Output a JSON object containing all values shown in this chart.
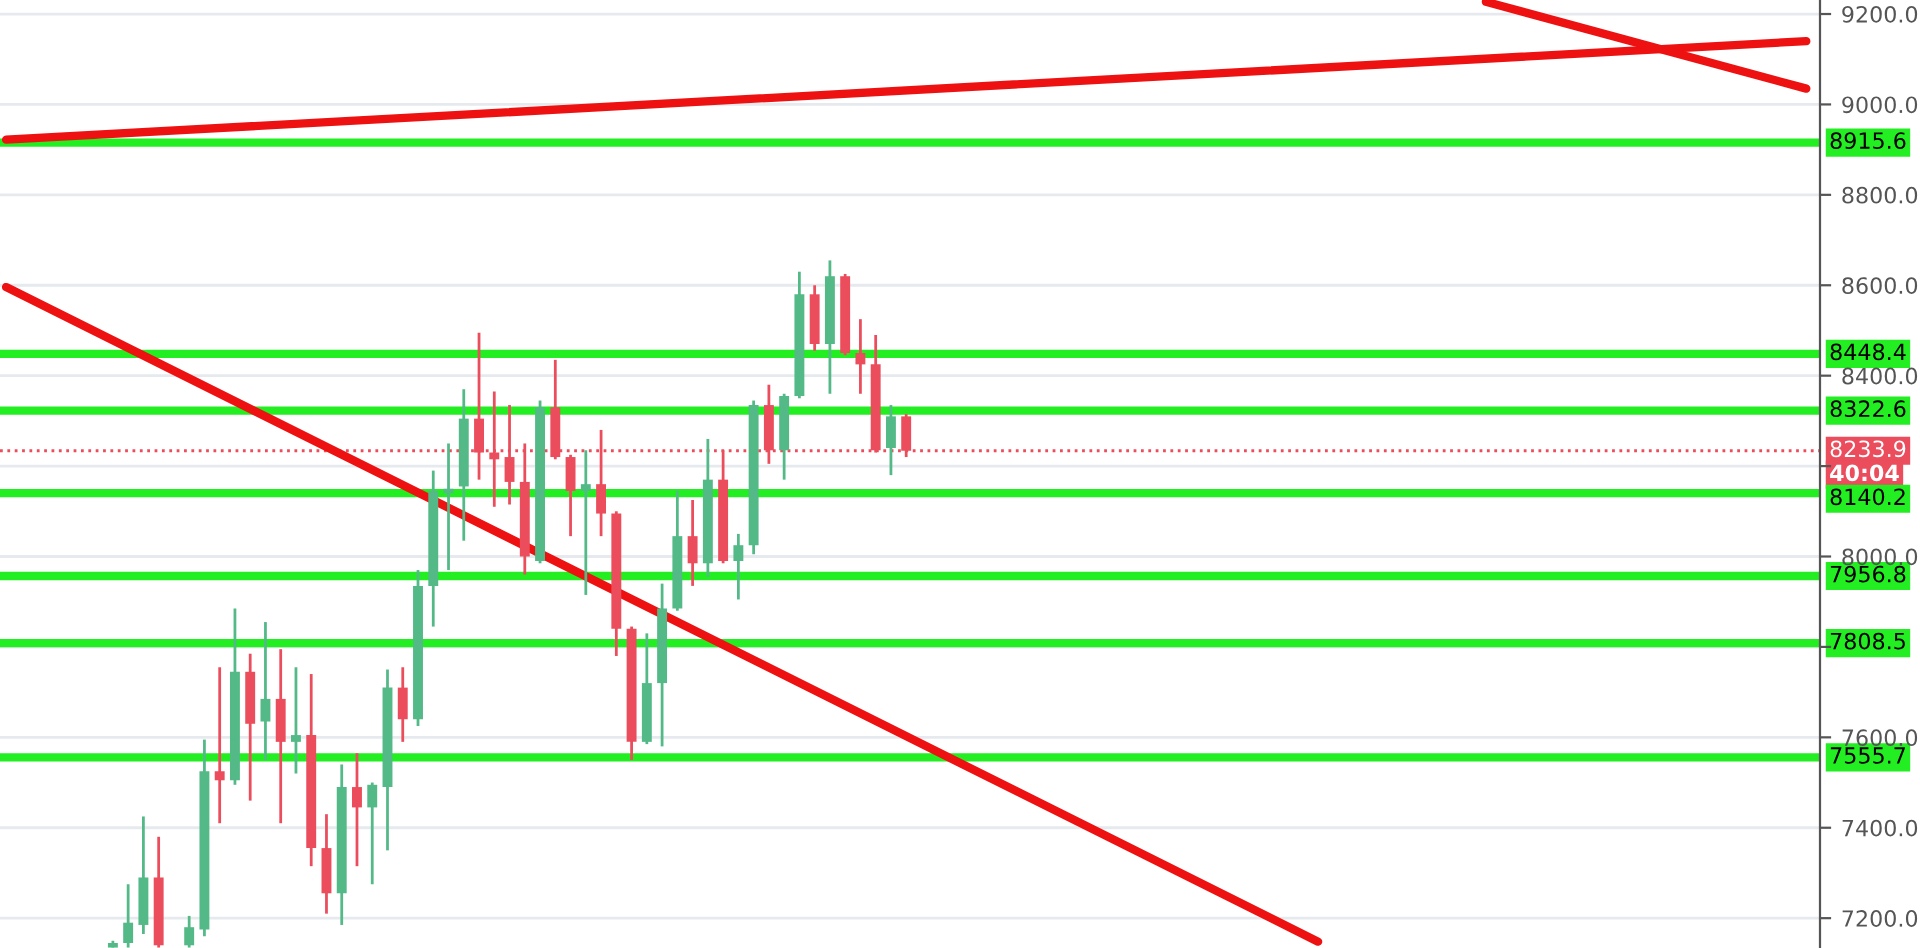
{
  "chart_data": {
    "type": "candlestick",
    "categories": [
      null,
      null,
      null,
      null,
      null,
      null,
      null,
      null,
      null,
      null,
      null,
      null,
      null,
      null,
      null,
      null,
      null,
      null,
      null,
      null,
      null,
      null,
      null,
      null,
      null,
      null,
      null,
      null,
      null,
      null,
      null,
      null,
      null,
      null,
      null,
      null,
      null,
      null,
      null,
      null,
      null,
      null,
      null,
      null,
      null,
      null,
      null,
      null,
      null,
      null,
      null,
      null,
      null,
      null,
      null,
      null,
      null,
      null,
      null,
      null,
      null,
      null,
      null,
      null,
      null,
      null,
      null,
      null,
      null,
      null,
      null,
      null,
      null,
      null,
      null,
      null,
      null,
      null,
      null,
      null,
      null,
      null,
      null,
      null,
      null,
      null,
      null,
      null,
      null,
      null,
      null,
      null,
      null,
      null,
      null,
      null,
      null,
      null,
      null,
      null,
      null,
      null,
      null,
      null,
      null,
      null,
      null,
      null,
      null,
      null,
      null,
      null,
      null,
      null,
      null,
      null,
      null,
      null,
      null
    ],
    "ohlc": [
      null,
      null,
      null,
      null,
      null,
      null,
      null,
      [
        7135,
        7150,
        7135,
        7145
      ],
      [
        7145,
        7275,
        7135,
        7190
      ],
      [
        7185,
        7425,
        7165,
        7290
      ],
      [
        7290,
        7380,
        7135,
        7140
      ],
      null,
      [
        7140,
        7205,
        7135,
        7180
      ],
      [
        7175,
        7595,
        7160,
        7525
      ],
      [
        7525,
        7755,
        7410,
        7505
      ],
      [
        7505,
        7885,
        7495,
        7745
      ],
      [
        7745,
        7785,
        7460,
        7630
      ],
      [
        7635,
        7855,
        7550,
        7685
      ],
      [
        7685,
        7795,
        7410,
        7590
      ],
      [
        7590,
        7755,
        7520,
        7605
      ],
      [
        7605,
        7740,
        7315,
        7355
      ],
      [
        7355,
        7430,
        7210,
        7255
      ],
      [
        7255,
        7540,
        7185,
        7490
      ],
      [
        7490,
        7565,
        7315,
        7445
      ],
      [
        7445,
        7500,
        7275,
        7495
      ],
      [
        7490,
        7750,
        7350,
        7710
      ],
      [
        7710,
        7755,
        7590,
        7640
      ],
      [
        7640,
        7970,
        7625,
        7935
      ],
      [
        7935,
        8190,
        7845,
        8145
      ],
      [
        8140,
        8250,
        7970,
        8150
      ],
      [
        8155,
        8370,
        8035,
        8305
      ],
      [
        8305,
        8495,
        8170,
        8230
      ],
      [
        8230,
        8365,
        8110,
        8215
      ],
      [
        8220,
        8335,
        8115,
        8165
      ],
      [
        8165,
        8250,
        7960,
        8000
      ],
      [
        7990,
        8345,
        7985,
        8330
      ],
      [
        8330,
        8435,
        8215,
        8220
      ],
      [
        8220,
        8225,
        8045,
        8145
      ],
      [
        8145,
        8235,
        7915,
        8160
      ],
      [
        8160,
        8280,
        8045,
        8095
      ],
      [
        8095,
        8100,
        7780,
        7840
      ],
      [
        7840,
        7845,
        7550,
        7590
      ],
      [
        7590,
        7830,
        7585,
        7720
      ],
      [
        7720,
        7940,
        7580,
        7885
      ],
      [
        7885,
        8145,
        7880,
        8045
      ],
      [
        8045,
        8125,
        7935,
        7985
      ],
      [
        7985,
        8260,
        7955,
        8170
      ],
      [
        8170,
        8235,
        7985,
        7990
      ],
      [
        7990,
        8050,
        7905,
        8025
      ],
      [
        8025,
        8345,
        8005,
        8335
      ],
      [
        8335,
        8380,
        8205,
        8235
      ],
      [
        8235,
        8360,
        8170,
        8355
      ],
      [
        8355,
        8630,
        8350,
        8580
      ],
      [
        8580,
        8600,
        8455,
        8470
      ],
      [
        8470,
        8655,
        8360,
        8620
      ],
      [
        8620,
        8625,
        8445,
        8450
      ],
      [
        8450,
        8525,
        8360,
        8425
      ],
      [
        8425,
        8490,
        8230,
        8235
      ],
      [
        8240,
        8335,
        8180,
        8310
      ],
      [
        8310,
        8315,
        8220,
        8233.9
      ],
      null,
      null,
      null,
      null,
      null,
      null,
      null,
      null,
      null,
      null,
      null,
      null,
      null,
      null,
      null,
      null,
      null,
      null,
      null,
      null,
      null,
      null,
      null,
      null,
      null,
      null,
      null,
      null,
      null,
      null,
      null,
      null,
      null,
      null,
      null,
      null,
      null,
      null,
      null,
      null,
      null,
      null,
      null,
      null,
      null,
      null,
      null,
      null,
      null,
      null,
      null,
      null,
      null,
      null,
      null,
      null,
      null,
      null,
      null
    ],
    "colors": [
      null,
      null,
      null,
      null,
      null,
      null,
      null,
      "#53b987",
      "#53b987",
      "#53b987",
      "#eb4d5c",
      null,
      "#53b987",
      "#53b987",
      "#eb4d5c",
      "#53b987",
      "#eb4d5c",
      "#53b987",
      "#eb4d5c",
      "#53b987",
      "#eb4d5c",
      "#eb4d5c",
      "#53b987",
      "#eb4d5c",
      "#53b987",
      "#53b987",
      "#eb4d5c",
      "#53b987",
      "#53b987",
      "#53b987",
      "#53b987",
      "#eb4d5c",
      "#eb4d5c",
      "#eb4d5c",
      "#eb4d5c",
      "#53b987",
      "#eb4d5c",
      "#eb4d5c",
      "#53b987",
      "#eb4d5c",
      "#eb4d5c",
      "#eb4d5c",
      "#53b987",
      "#53b987",
      "#53b987",
      "#eb4d5c",
      "#53b987",
      "#eb4d5c",
      "#53b987",
      "#53b987",
      "#eb4d5c",
      "#53b987",
      "#53b987",
      "#eb4d5c",
      "#53b987",
      "#eb4d5c",
      "#eb4d5c",
      "#eb4d5c",
      "#53b987",
      "#eb4d5c",
      null,
      null,
      null,
      null,
      null,
      null,
      null,
      null,
      null,
      null,
      null,
      null,
      null,
      null,
      null,
      null,
      null,
      null,
      null,
      null,
      null,
      null,
      null,
      null,
      null,
      null,
      null,
      null,
      null,
      null,
      null,
      null,
      null,
      null,
      null,
      null,
      null,
      null,
      null,
      null,
      null,
      null,
      null,
      null,
      null,
      null,
      null,
      null,
      null,
      null,
      null,
      null,
      null,
      null,
      null,
      null,
      null,
      null,
      null
    ],
    "series": [
      {
        "type": "line",
        "color": "#ee1111",
        "values": [
          8922,
          null,
          null,
          null,
          null,
          null,
          null,
          null,
          null,
          null,
          null,
          null,
          null,
          null,
          null,
          null,
          null,
          null,
          null,
          null,
          null,
          null,
          null,
          null,
          null,
          null,
          null,
          null,
          null,
          null,
          null,
          null,
          null,
          null,
          null,
          null,
          null,
          null,
          null,
          null,
          null,
          null,
          null,
          null,
          null,
          null,
          null,
          null,
          null,
          null,
          null,
          null,
          null,
          null,
          null,
          null,
          null,
          null,
          null,
          null,
          null,
          null,
          null,
          null,
          null,
          null,
          null,
          null,
          null,
          null,
          null,
          null,
          null,
          null,
          null,
          null,
          null,
          null,
          null,
          null,
          null,
          null,
          null,
          null,
          null,
          null,
          null,
          null,
          null,
          null,
          null,
          null,
          null,
          null,
          null,
          null,
          null,
          null,
          null,
          null,
          null,
          null,
          null,
          null,
          null,
          null,
          null,
          null,
          null,
          null,
          null,
          null,
          null,
          null,
          null,
          null,
          null,
          null,
          9140
        ]
      },
      {
        "type": "line",
        "color": "#ee1111",
        "values": [
          null,
          null,
          null,
          null,
          null,
          null,
          null,
          null,
          null,
          null,
          null,
          null,
          null,
          null,
          null,
          null,
          null,
          null,
          null,
          null,
          null,
          null,
          null,
          null,
          null,
          null,
          null,
          null,
          null,
          null,
          null,
          null,
          null,
          null,
          null,
          null,
          null,
          null,
          null,
          null,
          null,
          null,
          null,
          null,
          null,
          null,
          null,
          null,
          null,
          null,
          null,
          null,
          null,
          null,
          null,
          null,
          null,
          null,
          null,
          null,
          null,
          null,
          null,
          null,
          null,
          null,
          null,
          null,
          null,
          null,
          null,
          null,
          null,
          null,
          null,
          null,
          null,
          null,
          null,
          null,
          null,
          null,
          null,
          null,
          null,
          null,
          null,
          null,
          null,
          null,
          null,
          null,
          null,
          null,
          null,
          null,
          null,
          9227,
          null,
          null,
          null,
          null,
          null,
          null,
          null,
          null,
          null,
          null,
          null,
          null,
          null,
          null,
          null,
          null,
          null,
          null,
          null,
          null,
          9035
        ]
      },
      {
        "type": "line",
        "color": "#ee1111",
        "values": [
          8596,
          null,
          null,
          null,
          null,
          null,
          null,
          null,
          null,
          null,
          null,
          null,
          null,
          null,
          null,
          null,
          null,
          null,
          null,
          null,
          null,
          null,
          null,
          null,
          null,
          null,
          null,
          null,
          null,
          null,
          null,
          null,
          null,
          null,
          null,
          null,
          null,
          null,
          null,
          null,
          null,
          null,
          null,
          null,
          null,
          null,
          null,
          null,
          null,
          null,
          null,
          null,
          null,
          null,
          null,
          null,
          null,
          null,
          null,
          null,
          null,
          null,
          null,
          null,
          null,
          null,
          null,
          null,
          null,
          null,
          null,
          null,
          null,
          null,
          null,
          null,
          null,
          null,
          null,
          null,
          null,
          null,
          null,
          null,
          null,
          null,
          7148,
          null,
          null,
          null,
          null,
          null,
          null,
          null,
          null,
          null,
          null,
          null,
          null,
          null,
          null,
          null,
          null,
          null,
          null,
          null,
          null,
          null,
          null,
          null,
          null,
          null,
          null,
          null,
          null,
          null,
          null,
          null,
          null
        ]
      }
    ],
    "ref_lines": [
      {
        "axis": "y",
        "value": 8915.6,
        "label": "8915.6",
        "color": "#22ee22"
      },
      {
        "axis": "y",
        "value": 8448.4,
        "label": "8448.4",
        "color": "#22ee22"
      },
      {
        "axis": "y",
        "value": 8322.6,
        "label": "8322.6",
        "color": "#22ee22"
      },
      {
        "axis": "y",
        "value": 8233.9,
        "label": "8233.9",
        "color": "#eb4d5c",
        "line_style": "dotted"
      },
      {
        "axis": "y",
        "value": 8140.2,
        "label": "8140.2",
        "color": "#22ee22"
      },
      {
        "axis": "y",
        "value": 7956.8,
        "label": "7956.8",
        "color": "#22ee22"
      },
      {
        "axis": "y",
        "value": 7808.5,
        "label": "7808.5",
        "color": "#22ee22"
      },
      {
        "axis": "y",
        "value": 7555.7,
        "label": "7555.7",
        "color": "#22ee22"
      }
    ],
    "annotations": [
      "40:04"
    ],
    "ylim": [
      7134,
      9231
    ],
    "yticks": [
      {
        "value": 7200,
        "label": "7200.0"
      },
      {
        "value": 7400,
        "label": "7400.0"
      },
      {
        "value": 7600,
        "label": "7600.0"
      },
      {
        "value": 7800,
        "label": null
      },
      {
        "value": 8000,
        "label": "8000.0"
      },
      {
        "value": 8200,
        "label": null
      },
      {
        "value": 8400,
        "label": "8400.0"
      },
      {
        "value": 8600,
        "label": "8600.0"
      },
      {
        "value": 8800,
        "label": "8800.0"
      },
      {
        "value": 9000,
        "label": "9000.0"
      },
      {
        "value": 9200,
        "label": "9200.0"
      }
    ],
    "tick_labels": "y",
    "grid": "y"
  }
}
